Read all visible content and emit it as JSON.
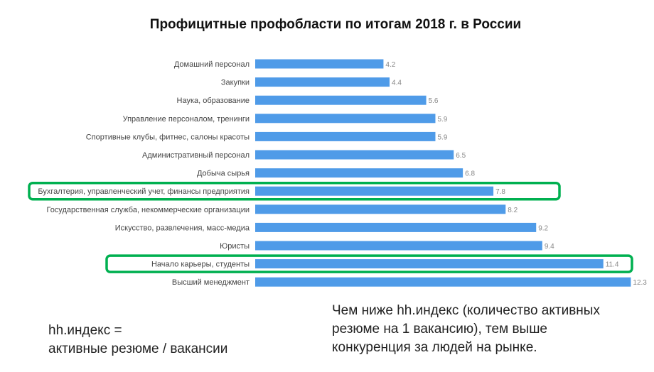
{
  "chart_data": {
    "type": "bar",
    "orientation": "horizontal",
    "title": "Профицитные профобласти по итогам 2018 г. в России",
    "categories": [
      "Домашний персонал",
      "Закупки",
      "Наука, образование",
      "Управление персоналом, тренинги",
      "Спортивные клубы, фитнес, салоны красоты",
      "Административный персонал",
      "Добыча сырья",
      "Бухгалтерия, управленческий учет, финансы предприятия",
      "Государственная служба, некоммерческие организации",
      "Искусство, развлечения, масс-медиа",
      "Юристы",
      "Начало карьеры, студенты",
      "Высший менеджмент"
    ],
    "values": [
      4.2,
      4.4,
      5.6,
      5.9,
      5.9,
      6.5,
      6.8,
      7.8,
      8.2,
      9.2,
      9.4,
      11.4,
      12.3
    ],
    "highlighted": [
      "Бухгалтерия, управленческий учет, финансы предприятия",
      "Начало карьеры, студенты"
    ],
    "xlim": [
      0,
      12.3
    ],
    "grid": false,
    "bar_color": "#4f9be8",
    "highlight_color": "#00b050"
  },
  "notes": {
    "left": [
      "hh.индекс =",
      "активные резюме / вакансии"
    ],
    "right": [
      "Чем ниже hh.индекс (количество активных",
      "резюме на 1 вакансию),  тем выше",
      "конкуренция за людей на рынке."
    ]
  }
}
